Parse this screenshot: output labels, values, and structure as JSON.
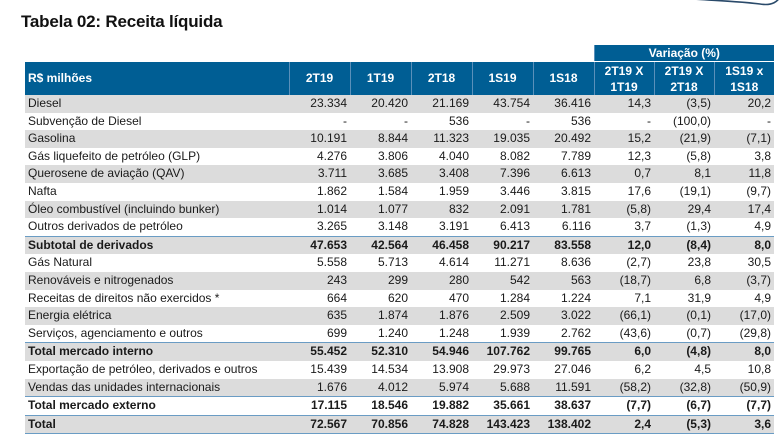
{
  "title": "Tabela 02: Receita líquida",
  "header": {
    "unit_label": "R$ milhões",
    "columns": [
      "2T19",
      "1T19",
      "2T18",
      "1S19",
      "1S18"
    ],
    "variation_group": "Variação (%)",
    "variation_columns": [
      {
        "line1": "2T19 X",
        "line2": "1T19"
      },
      {
        "line1": "2T19 X",
        "line2": "2T18"
      },
      {
        "line1": "1S19 x",
        "line2": "1S18"
      }
    ]
  },
  "colors": {
    "header_bg": "#005e94",
    "stripe": "#dcdcdc",
    "rule": "#6a9cc4"
  },
  "rows": [
    {
      "label": "Diesel",
      "values": [
        "23.334",
        "20.420",
        "21.169",
        "43.754",
        "36.416"
      ],
      "variations": [
        "14,3",
        "(3,5)",
        "20,2"
      ],
      "style": "normal"
    },
    {
      "label": "Subvenção de Diesel",
      "values": [
        "-",
        "-",
        "536",
        "-",
        "536"
      ],
      "variations": [
        "-",
        "(100,0)",
        "-"
      ],
      "style": "normal"
    },
    {
      "label": "Gasolina",
      "values": [
        "10.191",
        "8.844",
        "11.323",
        "19.035",
        "20.492"
      ],
      "variations": [
        "15,2",
        "(21,9)",
        "(7,1)"
      ],
      "style": "normal"
    },
    {
      "label": "Gás liquefeito de petróleo (GLP)",
      "values": [
        "4.276",
        "3.806",
        "4.040",
        "8.082",
        "7.789"
      ],
      "variations": [
        "12,3",
        "(5,8)",
        "3,8"
      ],
      "style": "normal"
    },
    {
      "label": "Querosene de aviação (QAV)",
      "values": [
        "3.711",
        "3.685",
        "3.408",
        "7.396",
        "6.613"
      ],
      "variations": [
        "0,7",
        "8,1",
        "11,8"
      ],
      "style": "normal"
    },
    {
      "label": "Nafta",
      "values": [
        "1.862",
        "1.584",
        "1.959",
        "3.446",
        "3.815"
      ],
      "variations": [
        "17,6",
        "(19,1)",
        "(9,7)"
      ],
      "style": "normal"
    },
    {
      "label": "Óleo combustível (incluindo bunker)",
      "values": [
        "1.014",
        "1.077",
        "832",
        "2.091",
        "1.781"
      ],
      "variations": [
        "(5,8)",
        "29,4",
        "17,4"
      ],
      "style": "normal"
    },
    {
      "label": "Outros derivados de petróleo",
      "values": [
        "3.265",
        "3.148",
        "3.191",
        "6.413",
        "6.116"
      ],
      "variations": [
        "3,7",
        "(1,3)",
        "4,9"
      ],
      "style": "normal"
    },
    {
      "label": "Subtotal de derivados",
      "values": [
        "47.653",
        "42.564",
        "46.458",
        "90.217",
        "83.558"
      ],
      "variations": [
        "12,0",
        "(8,4)",
        "8,0"
      ],
      "style": "bold"
    },
    {
      "label": "Gás Natural",
      "values": [
        "5.558",
        "5.713",
        "4.614",
        "11.271",
        "8.636"
      ],
      "variations": [
        "(2,7)",
        "23,8",
        "30,5"
      ],
      "style": "normal"
    },
    {
      "label": "Renováveis e nitrogenados",
      "values": [
        "243",
        "299",
        "280",
        "542",
        "563"
      ],
      "variations": [
        "(18,7)",
        "6,8",
        "(3,7)"
      ],
      "style": "normal"
    },
    {
      "label": "Receitas de direitos não exercidos *",
      "values": [
        "664",
        "620",
        "470",
        "1.284",
        "1.224"
      ],
      "variations": [
        "7,1",
        "31,9",
        "4,9"
      ],
      "style": "normal"
    },
    {
      "label": "Energia elétrica",
      "values": [
        "635",
        "1.874",
        "1.876",
        "2.509",
        "3.022"
      ],
      "variations": [
        "(66,1)",
        "(0,1)",
        "(17,0)"
      ],
      "style": "normal"
    },
    {
      "label": "Serviços, agenciamento e outros",
      "values": [
        "699",
        "1.240",
        "1.248",
        "1.939",
        "2.762"
      ],
      "variations": [
        "(43,6)",
        "(0,7)",
        "(29,8)"
      ],
      "style": "normal"
    },
    {
      "label": "Total mercado interno",
      "values": [
        "55.452",
        "52.310",
        "54.946",
        "107.762",
        "99.765"
      ],
      "variations": [
        "6,0",
        "(4,8)",
        "8,0"
      ],
      "style": "bold"
    },
    {
      "label": "Exportação de petróleo, derivados e outros",
      "values": [
        "15.439",
        "14.534",
        "13.908",
        "29.973",
        "27.046"
      ],
      "variations": [
        "6,2",
        "4,5",
        "10,8"
      ],
      "style": "normal"
    },
    {
      "label": "Vendas das unidades internacionais",
      "values": [
        "1.676",
        "4.012",
        "5.974",
        "5.688",
        "11.591"
      ],
      "variations": [
        "(58,2)",
        "(32,8)",
        "(50,9)"
      ],
      "style": "normal"
    },
    {
      "label": "Total mercado externo",
      "values": [
        "17.115",
        "18.546",
        "19.882",
        "35.661",
        "38.637"
      ],
      "variations": [
        "(7,7)",
        "(6,7)",
        "(7,7)"
      ],
      "style": "bold"
    },
    {
      "label": "Total",
      "values": [
        "72.567",
        "70.856",
        "74.828",
        "143.423",
        "138.402"
      ],
      "variations": [
        "2,4",
        "(5,3)",
        "3,6"
      ],
      "style": "bold"
    }
  ]
}
